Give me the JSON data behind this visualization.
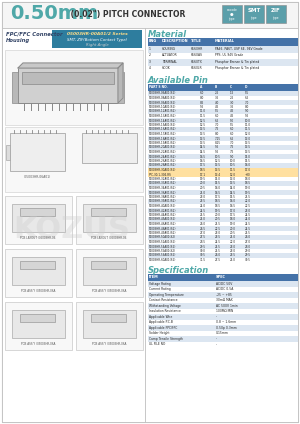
{
  "title_large": "0.50mm",
  "title_small": " (0.02\") PITCH CONNECTOR",
  "bg_color": "#f2f2f2",
  "white": "#ffffff",
  "border_color": "#aaaaaa",
  "teal_color": "#4fa8a8",
  "blue_header": "#4472a8",
  "series_name": "05003HR-00A01/2 Series",
  "series_sub1": "SMT, ZIF(Bottom Contact Type)",
  "series_sub2": "Right Angle",
  "material_title": "Material",
  "material_headers": [
    "ENG",
    "DESCRIPTION",
    "TITLE",
    "MATERIAL"
  ],
  "material_rows": [
    [
      "1",
      "HOUSING",
      "6560HR",
      "PA46, PA6T, USP 6E, 94V Grade"
    ],
    [
      "2",
      "ACTUATOR",
      "6560AS",
      "PPS, UL 94V Grade"
    ],
    [
      "3",
      "TERMINAL",
      "6560TX",
      "Phosphor Bronze & Tin plated"
    ],
    [
      "4",
      "HOOK",
      "6560LR",
      "Phosphor Bronze & Tin plated"
    ]
  ],
  "avail_title": "Available Pin",
  "avail_headers": [
    "PART S NO.",
    "A",
    "B",
    "C",
    "D"
  ],
  "avail_rows": [
    [
      "05003HR-06A01(S2)",
      "6.0",
      "2.5",
      "1.5",
      "5.5"
    ],
    [
      "05003HR-08A01(S2)",
      "8.0",
      "3.5",
      "2.5",
      "6.5"
    ],
    [
      "05003HR-09A01(S2)",
      "8.5",
      "4.0",
      "3.0",
      "7.0"
    ],
    [
      "05003HR-10A01(S2)",
      "9.5",
      "4.5",
      "3.5",
      "8.0"
    ],
    [
      "05003HR-12A01(S2)",
      "11.0",
      "5.5",
      "4.5",
      "9.0"
    ],
    [
      "05003HR-13A01(S2)",
      "11.5",
      "6.0",
      "4.5",
      "9.5"
    ],
    [
      "05003HR-14A01(S2)",
      "12.5",
      "6.5",
      "5.0",
      "10.0"
    ],
    [
      "05003HR-15A01(S2)",
      "12.5",
      "7.0",
      "5.5",
      "11.0"
    ],
    [
      "05003HR-16A01(S2)",
      "13.5",
      "7.5",
      "6.0",
      "11.5"
    ],
    [
      "05003HR-17A01(S2)",
      "13.5",
      "8.0",
      "6.0",
      "12.0"
    ],
    [
      "05003HR-18A01(S2)",
      "13.5",
      "7.15",
      "6.5",
      "13.0"
    ],
    [
      "05003HR-19A01(S2)",
      "13.5",
      "8.15",
      "7.0",
      "13.5"
    ],
    [
      "05003HR-20A01(S2)",
      "14.5",
      "9.5",
      "7.5",
      "13.5"
    ],
    [
      "05003HR-22A01(S2)",
      "14.5",
      "9.5",
      "7.5",
      "13.5"
    ],
    [
      "05003HR-24A01(S2)",
      "16.5",
      "10.5",
      "9.0",
      "15.0"
    ],
    [
      "05003HR-26A01(S2)",
      "16.5",
      "12.5",
      "10.0",
      "15.5"
    ],
    [
      "05003HR-28A01(S2)",
      "17.5",
      "13.5",
      "10.5",
      "16.0"
    ],
    [
      "05003HR-30A01(S2)",
      "18.5",
      "13.5",
      "11.5",
      "17.0"
    ],
    [
      "FPC-30-1-304-RS",
      "17.1",
      "13.4",
      "12.0",
      "+30"
    ],
    [
      "05003HR-32A01(S2)",
      "19.5",
      "15.0",
      "13.0",
      "18.0"
    ],
    [
      "05003HR-33A01(S2)",
      "20.0",
      "15.5",
      "13.5",
      "18.5"
    ],
    [
      "05003HR-34A01(S2)",
      "20.5",
      "16.0",
      "14.0",
      "19.0"
    ],
    [
      "05003HR-36A01(S2)",
      "21.0",
      "16.5",
      "14.5",
      "19.5"
    ],
    [
      "05003HR-38A01(S2)",
      "23.0",
      "17.5",
      "15.5",
      "21.5"
    ],
    [
      "05003HR-39A01(S2)",
      "23.5",
      "18.5",
      "16.0",
      "22.0"
    ],
    [
      "05003HR-40A01(S2)",
      "24.0",
      "18.5",
      "16.5",
      "22.5"
    ],
    [
      "05003HR-42A01(S2)",
      "24.5",
      "19.5",
      "17.0",
      "23.0"
    ],
    [
      "05003HR-44A01(S2)",
      "25.5",
      "20.0",
      "17.5",
      "24.5"
    ],
    [
      "05003HR-45A01(S2)",
      "25.0",
      "20.5",
      "18.0",
      "24.0"
    ],
    [
      "05003HR-46A01(S2)",
      "26.0",
      "21.5",
      "19.0",
      "24.5"
    ],
    [
      "05003HR-48A01(S2)",
      "26.5",
      "22.5",
      "20.0",
      "24.5"
    ],
    [
      "05003HR-49A01(S2)",
      "27.0",
      "23.0",
      "20.5",
      "25.5"
    ],
    [
      "05003HR-50A01(S2)",
      "27.5",
      "23.5",
      "21.0",
      "26.0"
    ],
    [
      "05003HR-52A01(S2)",
      "28.5",
      "24.5",
      "22.0",
      "27.0"
    ],
    [
      "05003HR-54A01(S2)",
      "29.5",
      "25.5",
      "23.0",
      "28.0"
    ],
    [
      "05003HR-55A01(S2)",
      "30.0",
      "25.5",
      "23.0",
      "29.0"
    ],
    [
      "05003HR-56A01(S2)",
      "30.5",
      "26.0",
      "23.5",
      "29.5"
    ],
    [
      "05003HR-60A01(S2)",
      "31.5",
      "27.5",
      "25.0",
      "30.5"
    ]
  ],
  "spec_title": "Specification",
  "spec_headers": [
    "ITEM",
    "SPEC"
  ],
  "spec_rows": [
    [
      "Voltage Rating",
      "AC/DC 50V"
    ],
    [
      "Current Rating",
      "AC/DC 0.5A"
    ],
    [
      "Operating Temperature",
      "-25 ~ +85"
    ],
    [
      "Contact Resistance",
      "30mΩ MAX"
    ],
    [
      "Withstanding Voltage",
      "AC 500V 1min"
    ],
    [
      "Insulation Resistance",
      "100MΩ MIN"
    ],
    [
      "Applicable Wire",
      "-"
    ],
    [
      "Applicable P.C.B",
      "0.8 ~ 1.6mm"
    ],
    [
      "Applicable FPC/FFC",
      "0.50p 0.3mm"
    ],
    [
      "Solder Height",
      "0.15mm"
    ],
    [
      "Camp Tensile Strength",
      "-"
    ],
    [
      "UL FILE NO",
      "-"
    ]
  ]
}
